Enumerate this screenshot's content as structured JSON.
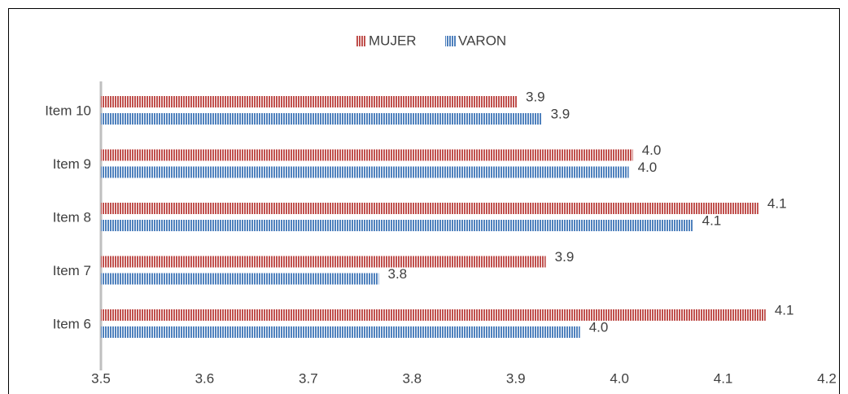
{
  "chart_data": {
    "type": "bar",
    "orientation": "horizontal",
    "categories": [
      "Item 10",
      "Item 9",
      "Item 8",
      "Item 7",
      "Item 6"
    ],
    "series": [
      {
        "name": "MUJER",
        "color": "#c0504d",
        "values": [
          3.901,
          4.013,
          4.134,
          3.929,
          4.141
        ],
        "value_labels": [
          "3.9",
          "4.0",
          "4.1",
          "3.9",
          "4.1"
        ]
      },
      {
        "name": "VARON",
        "color": "#4f81bd",
        "values": [
          3.925,
          4.009,
          4.071,
          3.768,
          3.962
        ],
        "value_labels": [
          "3.9",
          "4.0",
          "4.1",
          "3.8",
          "4.0"
        ]
      }
    ],
    "xlim": [
      3.5,
      4.2
    ],
    "xticks": [
      3.5,
      3.6,
      3.7,
      3.8,
      3.9,
      {
        "value": 4,
        "label": "4.0"
      },
      4.1,
      4.2
    ],
    "legend": "top"
  }
}
